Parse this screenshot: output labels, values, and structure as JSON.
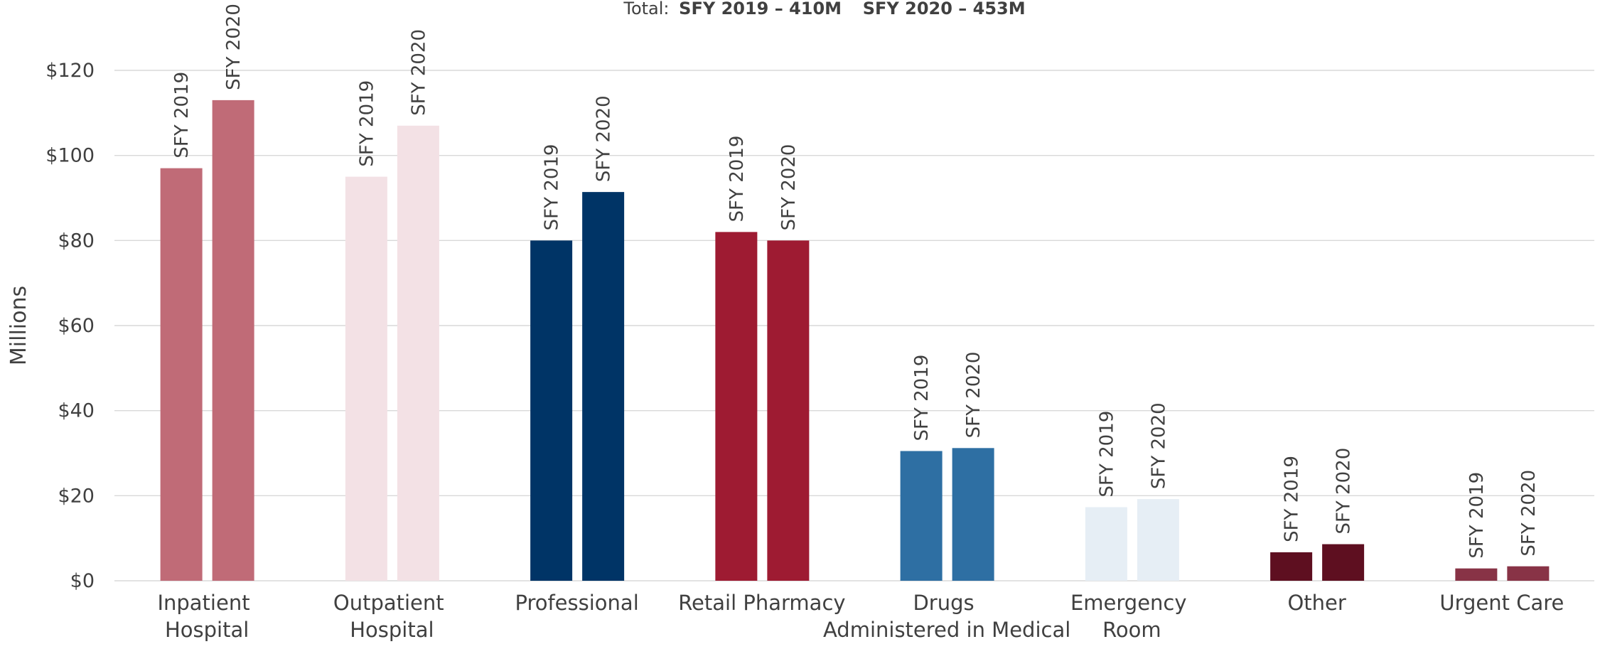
{
  "chart_data": {
    "type": "bar",
    "subtitle": [
      "Total:",
      "SFY 2019 – 410M",
      "SFY 2020 – 453M"
    ],
    "y_label": "Millions",
    "categories": [
      "Inpatient Hospital",
      "Outpatient Hospital",
      "Professional",
      "Retail Pharmacy",
      "Drugs Administered in Medical",
      "Emergency Room",
      "Other",
      "Urgent Care"
    ],
    "colors": [
      "#c06b77",
      "#f3e1e5",
      "#003466",
      "#9e1b32",
      "#2e6fa3",
      "#e6eef5",
      "#5e0f20",
      "#883346"
    ],
    "series": [
      {
        "name": "SFY 2019",
        "values": [
          97,
          95,
          80,
          82,
          30.5,
          17.3,
          6.7,
          2.9
        ]
      },
      {
        "name": "SFY 2020",
        "values": [
          113,
          107,
          91.4,
          80,
          31.2,
          19.2,
          8.6,
          3.4
        ]
      }
    ],
    "ylim": [
      0,
      120
    ],
    "yticks": [
      {
        "value": 0,
        "label": "$0"
      },
      {
        "value": 20,
        "label": "$20"
      },
      {
        "value": 40,
        "label": "$40"
      },
      {
        "value": 60,
        "label": "$60"
      },
      {
        "value": 80,
        "label": "$80"
      },
      {
        "value": 100,
        "label": "$100"
      },
      {
        "value": 120,
        "label": "$120"
      }
    ],
    "grid": true
  }
}
